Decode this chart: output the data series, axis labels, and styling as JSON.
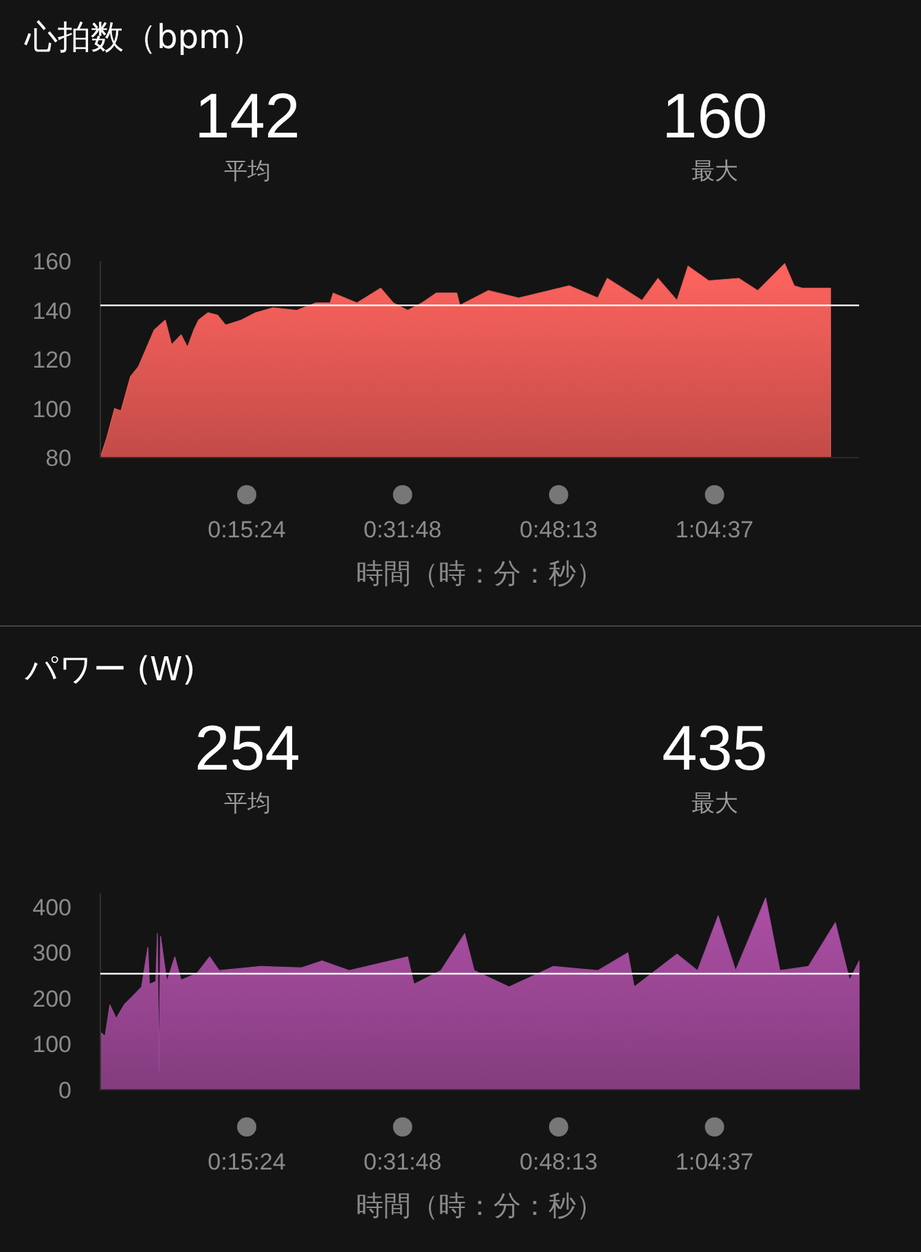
{
  "chart_data": [
    {
      "type": "area",
      "title": "心拍数（bpm）",
      "xlabel": "時間（時：分：秒）",
      "annotations": [
        "142",
        "平均",
        "160",
        "最大"
      ],
      "x": [
        0,
        40,
        90,
        130,
        190,
        240,
        300,
        340,
        410,
        450,
        510,
        550,
        590,
        620,
        680,
        740,
        790,
        890,
        980,
        1090,
        1240,
        1360,
        1450,
        1470,
        1620,
        1770,
        1850,
        1940,
        2030,
        2120,
        2250,
        2270,
        2450,
        2640,
        2960,
        3140,
        3200,
        3420,
        3520,
        3640,
        3710,
        3840,
        4030,
        4150,
        4320,
        4380,
        4430,
        4520,
        4610
      ],
      "series": [
        {
          "color": "#e85a55",
          "values": [
            80,
            88,
            100,
            99,
            113,
            117,
            126,
            132,
            136,
            126,
            130,
            125,
            132,
            136,
            139,
            138,
            134,
            136,
            139,
            141,
            140,
            143,
            143,
            147,
            143,
            149,
            143,
            140,
            143,
            147,
            147,
            142,
            148,
            145,
            150,
            145,
            153,
            144,
            153,
            144,
            158,
            152,
            153,
            148,
            159,
            150,
            149,
            149,
            149
          ]
        }
      ],
      "xlim": [
        0,
        4790
      ],
      "ylim": [
        80,
        160
      ],
      "yticks": [
        80,
        100,
        120,
        140,
        160
      ],
      "xticks": [
        {
          "value": 924,
          "label": "0:15:24"
        },
        {
          "value": 1908,
          "label": "0:31:48"
        },
        {
          "value": 2893,
          "label": "0:48:13"
        },
        {
          "value": 3877,
          "label": "1:04:37"
        }
      ],
      "ref_lines": [
        {
          "axis": "y",
          "value": 142,
          "color": "#ffffff"
        }
      ],
      "grid": false
    },
    {
      "type": "area",
      "title": "パワー (W)",
      "xlabel": "時間（時：分：秒）",
      "annotations": [
        "254",
        "平均",
        "435",
        "最大"
      ],
      "x": [
        0,
        30,
        60,
        100,
        150,
        210,
        260,
        300,
        310,
        350,
        360,
        370,
        380,
        420,
        470,
        510,
        610,
        690,
        750,
        1010,
        1270,
        1400,
        1570,
        1940,
        1980,
        2150,
        2300,
        2360,
        2580,
        2860,
        3140,
        3330,
        3370,
        3640,
        3770,
        3900,
        4010,
        4200,
        4290,
        4470,
        4640,
        4730,
        4790
      ],
      "series": [
        {
          "color": "#9c4896",
          "values": [
            126,
            117,
            186,
            156,
            186,
            207,
            225,
            312,
            231,
            237,
            342,
            40,
            336,
            237,
            291,
            240,
            255,
            291,
            261,
            270,
            267,
            282,
            261,
            291,
            231,
            261,
            342,
            261,
            225,
            270,
            261,
            300,
            225,
            297,
            261,
            381,
            261,
            420,
            261,
            270,
            366,
            240,
            282
          ]
        }
      ],
      "xlim": [
        0,
        4790
      ],
      "ylim": [
        0,
        430
      ],
      "yticks": [
        0,
        100,
        200,
        300,
        400
      ],
      "xticks": [
        {
          "value": 924,
          "label": "0:15:24"
        },
        {
          "value": 1908,
          "label": "0:31:48"
        },
        {
          "value": 2893,
          "label": "0:48:13"
        },
        {
          "value": 3877,
          "label": "1:04:37"
        }
      ],
      "ref_lines": [
        {
          "axis": "y",
          "value": 254,
          "color": "#ffffff"
        }
      ],
      "grid": false
    }
  ]
}
